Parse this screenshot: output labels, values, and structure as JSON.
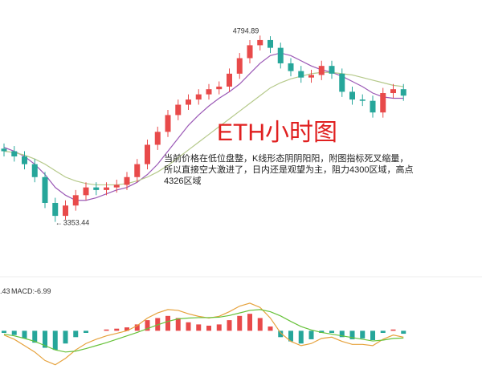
{
  "chart_data": {
    "type": "candlestick",
    "title": "ETH小时图",
    "annotation": "当前价格在低位盘整，K线形态阴阴阳阳，附图指标死叉缩量，所以直接空大激进了，日内还是观望为主，阻力4300区域，高点4326区域",
    "open": [
      3920,
      3900,
      3860,
      3800,
      3700,
      3500,
      3400,
      3480,
      3560,
      3620,
      3600,
      3620,
      3640,
      3700,
      3800,
      3950,
      4050,
      4180,
      4260,
      4300,
      4340,
      4380,
      4400,
      4500,
      4620,
      4720,
      4760,
      4700,
      4580,
      4520,
      4470,
      4490,
      4560,
      4500,
      4360,
      4300,
      4290,
      4200,
      4350,
      4380
    ],
    "high": [
      3960,
      3940,
      3900,
      3840,
      3740,
      3540,
      3520,
      3600,
      3660,
      3660,
      3660,
      3680,
      3740,
      3840,
      3990,
      4090,
      4220,
      4300,
      4340,
      4380,
      4420,
      4440,
      4540,
      4660,
      4760,
      4794.89,
      4790,
      4740,
      4620,
      4560,
      4530,
      4600,
      4600,
      4540,
      4400,
      4340,
      4330,
      4390,
      4420,
      4420
    ],
    "low": [
      3860,
      3820,
      3760,
      3660,
      3460,
      3353.44,
      3370,
      3440,
      3520,
      3560,
      3560,
      3580,
      3600,
      3660,
      3760,
      3910,
      4010,
      4140,
      4220,
      4260,
      4300,
      4340,
      4360,
      4460,
      4580,
      4680,
      4660,
      4540,
      4480,
      4430,
      4430,
      4450,
      4460,
      4320,
      4260,
      4250,
      4160,
      4160,
      4310,
      4290
    ],
    "close": [
      3900,
      3860,
      3800,
      3700,
      3500,
      3400,
      3480,
      3560,
      3620,
      3600,
      3620,
      3640,
      3700,
      3800,
      3950,
      4050,
      4180,
      4260,
      4300,
      4340,
      4380,
      4400,
      4500,
      4620,
      4720,
      4760,
      4700,
      4580,
      4520,
      4470,
      4490,
      4560,
      4500,
      4360,
      4300,
      4290,
      4200,
      4350,
      4380,
      4330
    ],
    "up_color": "#e84a4a",
    "down_color": "#26a69a",
    "ylim": [
      2960,
      5070
    ],
    "overlays": [
      {
        "color": "#9b59b6",
        "values": [
          3930,
          3900,
          3860,
          3800,
          3720,
          3620,
          3560,
          3520,
          3520,
          3540,
          3570,
          3600,
          3620,
          3660,
          3720,
          3800,
          3900,
          4000,
          4100,
          4180,
          4250,
          4310,
          4360,
          4420,
          4500,
          4580,
          4640,
          4660,
          4640,
          4600,
          4560,
          4530,
          4510,
          4480,
          4440,
          4400,
          4350,
          4320,
          4310,
          4310
        ]
      },
      {
        "color": "#b5c98a",
        "values": [
          3900,
          3890,
          3870,
          3840,
          3800,
          3750,
          3700,
          3670,
          3650,
          3640,
          3640,
          3640,
          3650,
          3670,
          3700,
          3740,
          3790,
          3850,
          3910,
          3970,
          4030,
          4090,
          4150,
          4210,
          4270,
          4330,
          4390,
          4430,
          4460,
          4480,
          4500,
          4510,
          4510,
          4500,
          4490,
          4470,
          4450,
          4430,
          4410,
          4400
        ]
      }
    ],
    "clipped_label": ".43",
    "macd_label": "MACD:-6.99",
    "macd": [
      -5,
      -10,
      -18,
      -28,
      -40,
      -45,
      -30,
      -15,
      -5,
      0,
      3,
      5,
      8,
      15,
      25,
      30,
      35,
      30,
      20,
      15,
      12,
      15,
      25,
      35,
      40,
      30,
      10,
      -15,
      -25,
      -30,
      -20,
      -5,
      -5,
      -15,
      -20,
      -18,
      -22,
      -5,
      3,
      -6.99
    ],
    "dif": {
      "color": "#e6a23c",
      "values": [
        -10,
        -20,
        -35,
        -50,
        -70,
        -80,
        -65,
        -45,
        -30,
        -20,
        -12,
        -6,
        0,
        12,
        30,
        42,
        50,
        48,
        40,
        34,
        30,
        34,
        45,
        58,
        65,
        55,
        30,
        -5,
        -25,
        -35,
        -30,
        -18,
        -15,
        -25,
        -32,
        -32,
        -35,
        -20,
        -10,
        -15
      ]
    },
    "dea": {
      "color": "#67c23a",
      "values": [
        -8,
        -12,
        -18,
        -25,
        -35,
        -45,
        -50,
        -48,
        -42,
        -35,
        -28,
        -20,
        -12,
        -4,
        5,
        14,
        22,
        28,
        30,
        31,
        31,
        32,
        36,
        42,
        48,
        50,
        45,
        35,
        22,
        10,
        2,
        -4,
        -8,
        -12,
        -16,
        -20,
        -24,
        -22,
        -18,
        -17
      ]
    },
    "macd_ylim": [
      -90,
      80
    ]
  }
}
